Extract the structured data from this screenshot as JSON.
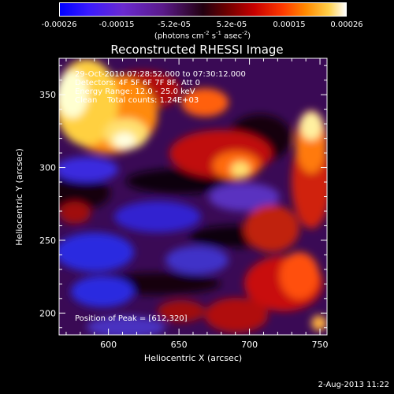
{
  "colorbar": {
    "tick_labels": [
      "-0.00026",
      "-0.00015",
      "-5.2e-05",
      "5.2e-05",
      "0.00015",
      "0.00026"
    ],
    "unit_prefix": "(photons cm",
    "unit_exp1": "-2",
    "unit_mid": " s",
    "unit_exp2": "-1",
    "unit_mid2": " asec",
    "unit_exp3": "-2",
    "unit_suffix": ")"
  },
  "chart_data": {
    "type": "heatmap",
    "title": "Reconstructed RHESSI Image",
    "xlabel": "Heliocentric X (arcsec)",
    "ylabel": "Heliocentric Y (arcsec)",
    "xlim": [
      565,
      755
    ],
    "ylim": [
      185,
      375
    ],
    "x_ticks": [
      600,
      650,
      700,
      750
    ],
    "y_ticks": [
      200,
      250,
      300,
      350
    ],
    "value_range": [
      -0.00026,
      0.00026
    ],
    "peak": [
      612,
      320
    ],
    "colormap_colors": [
      "#0000ff",
      "#6a2ad0",
      "#220010",
      "#c80000",
      "#ff8a00",
      "#ffffff"
    ],
    "annotations": {
      "time_range": "29-Oct-2010 07:28:52.000 to 07:30:12.000",
      "detectors": "Detectors: 4F 5F 6F 7F 8F, Att 0",
      "energy_range": "Energy Range: 12.0 - 25.0 keV",
      "clean_counts": "Clean    Total counts: 1.24E+03",
      "peak_position": "Position of Peak = [612,320]"
    }
  },
  "footer": {
    "date": "2-Aug-2013 11:22"
  }
}
